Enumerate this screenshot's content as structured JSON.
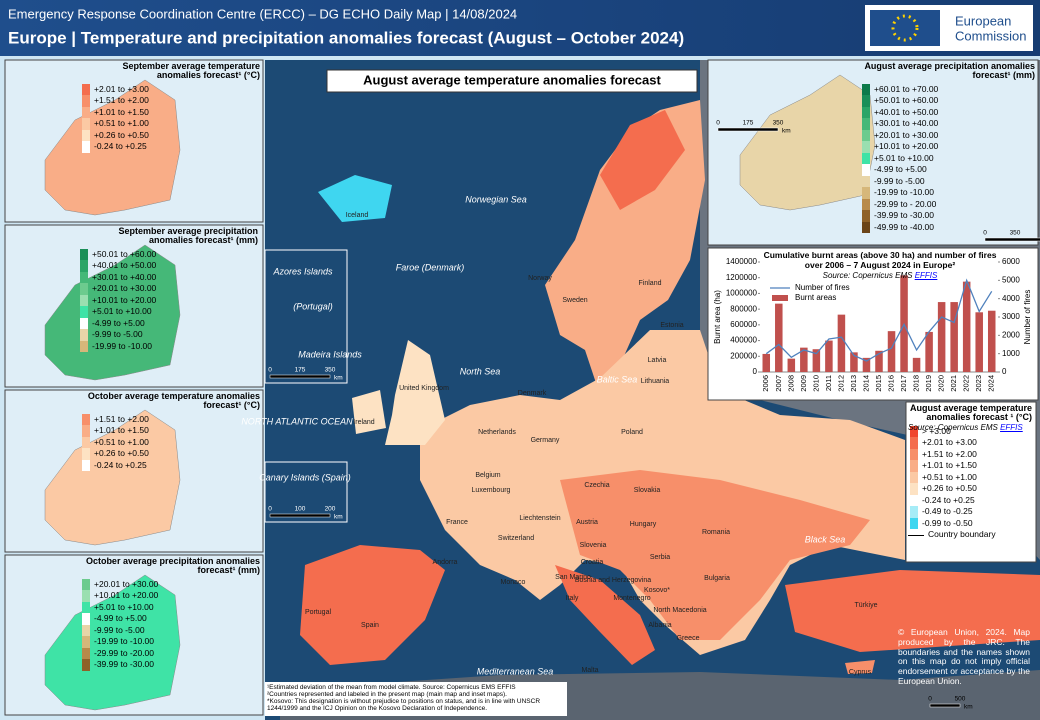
{
  "header": {
    "subtitle": "Emergency Response Coordination Centre (ERCC) – DG ECHO Daily Map | 14/08/2024",
    "title": "Europe | Temperature and precipitation anomalies forecast (August – October 2024)",
    "logo": [
      "European",
      "Commission"
    ]
  },
  "main_map": {
    "title": "August average temperature anomalies forecast",
    "labels": [
      "Norwegian Sea",
      "Iceland",
      "Faroe (Denmark)",
      "Azores Islands",
      "(Portugal)",
      "Madeira Islands",
      "NORTH ATLANTIC OCEAN",
      "Canary Islands (Spain)",
      "North Sea",
      "Baltic Sea",
      "Black Sea",
      "Mediterranean Sea",
      "Norway",
      "Sweden",
      "Finland",
      "Estonia",
      "Latvia",
      "Lithuania",
      "Denmark",
      "United Kingdom",
      "Ireland",
      "Netherlands",
      "Belgium",
      "Luxembourg",
      "Germany",
      "Poland",
      "Czechia",
      "Slovakia",
      "Austria",
      "Hungary",
      "Liechtenstein",
      "Switzerland",
      "France",
      "Slovenia",
      "Croatia",
      "Romania",
      "Serbia",
      "Bosnia and Herzegovina",
      "Montenegro",
      "Kosovo*",
      "Bulgaria",
      "North Macedonia",
      "Albania",
      "Italy",
      "San Marino",
      "Monaco",
      "Andorra",
      "Spain",
      "Portugal",
      "Greece",
      "Malta",
      "Türkiye",
      "Cyprus"
    ]
  },
  "insets": [
    {
      "title": "September average temperature anomalies forecast¹ (°C)",
      "items": [
        {
          "label": "+2.01 to +3.00",
          "color": "#f46d4e"
        },
        {
          "label": "+1.51 to +2.00",
          "color": "#f78f6a"
        },
        {
          "label": "+1.01 to +1.50",
          "color": "#f9ad87"
        },
        {
          "label": "+0.51 to +1.00",
          "color": "#fbc9a4"
        },
        {
          "label": "+0.26 to +0.50",
          "color": "#fde2c3"
        },
        {
          "label": "-0.24 to +0.25",
          "color": "#ffffff"
        }
      ]
    },
    {
      "title": "September average precipitation anomalies forecast¹ (mm)",
      "items": [
        {
          "label": "+50.01 to +60.00",
          "color": "#1a8f58"
        },
        {
          "label": "+40.01 to +50.00",
          "color": "#2ba567"
        },
        {
          "label": "+30.01 to +40.00",
          "color": "#45b878"
        },
        {
          "label": "+20.01 to +30.00",
          "color": "#6ccb8e"
        },
        {
          "label": "+10.01 to +20.00",
          "color": "#9adfb0"
        },
        {
          "label": "+5.01 to +10.00",
          "color": "#3fe3a6"
        },
        {
          "label": "-4.99 to +5.00",
          "color": "#ffffff"
        },
        {
          "label": "-9.99 to -5.00",
          "color": "#e8d5a8"
        },
        {
          "label": "-19.99 to -10.00",
          "color": "#d6b77a"
        }
      ]
    },
    {
      "title": "October average temperature anomalies forecast¹ (°C)",
      "items": [
        {
          "label": "+1.51 to +2.00",
          "color": "#f78f6a"
        },
        {
          "label": "+1.01 to +1.50",
          "color": "#f9ad87"
        },
        {
          "label": "+0.51 to +1.00",
          "color": "#fbc9a4"
        },
        {
          "label": "+0.26 to +0.50",
          "color": "#fde2c3"
        },
        {
          "label": "-0.24 to +0.25",
          "color": "#ffffff"
        }
      ]
    },
    {
      "title": "October average precipitation anomalies forecast¹ (mm)",
      "items": [
        {
          "label": "+20.01 to +30.00",
          "color": "#6ccb8e"
        },
        {
          "label": "+10.01 to +20.00",
          "color": "#9adfb0"
        },
        {
          "label": "+5.01 to +10.00",
          "color": "#3fe3a6"
        },
        {
          "label": "-4.99 to +5.00",
          "color": "#ffffff"
        },
        {
          "label": "-9.99 to -5.00",
          "color": "#e8d5a8"
        },
        {
          "label": "-19.99 to -10.00",
          "color": "#d6b77a"
        },
        {
          "label": "-29.99 to -20.00",
          "color": "#b88a4a"
        },
        {
          "label": "-39.99 to -30.00",
          "color": "#8f6128"
        }
      ]
    }
  ],
  "precip_inset": {
    "title": "August average precipitation anomalies forecast¹ (mm)",
    "items": [
      {
        "label": "+60.01 to +70.00",
        "color": "#0d7a4a"
      },
      {
        "label": "+50.01 to +60.00",
        "color": "#1a8f58"
      },
      {
        "label": "+40.01 to +50.00",
        "color": "#2ba567"
      },
      {
        "label": "+30.01 to +40.00",
        "color": "#45b878"
      },
      {
        "label": "+20.01 to +30.00",
        "color": "#6ccb8e"
      },
      {
        "label": "+10.01 to +20.00",
        "color": "#9adfb0"
      },
      {
        "label": "+5.01 to +10.00",
        "color": "#3fe3a6"
      },
      {
        "label": "-4.99 to +5.00",
        "color": "#ffffff"
      },
      {
        "label": "-9.99 to -5.00",
        "color": "#e8d5a8"
      },
      {
        "label": "-19.99 to -10.00",
        "color": "#d6b77a"
      },
      {
        "label": "-29.99 to - 20.00",
        "color": "#b88a4a"
      },
      {
        "label": "-39.99 to -30.00",
        "color": "#8f6128"
      },
      {
        "label": "-49.99 to -40.00",
        "color": "#6b4418"
      }
    ]
  },
  "main_legend": {
    "title": "August average temperature anomalies forecast ¹ (°C)",
    "source": "Source: Copernicus EMS",
    "source_link": "EFFIS",
    "items": [
      {
        "label": "> +3.00",
        "color": "#f0462f"
      },
      {
        "label": "+2.01 to +3.00",
        "color": "#f46d4e"
      },
      {
        "label": "+1.51 to +2.00",
        "color": "#f78f6a"
      },
      {
        "label": "+1.01 to +1.50",
        "color": "#f9ad87"
      },
      {
        "label": "+0.51 to +1.00",
        "color": "#fbc9a4"
      },
      {
        "label": "+0.26 to +0.50",
        "color": "#fde2c3"
      },
      {
        "label": "-0.24 to +0.25",
        "color": "#ffffff"
      },
      {
        "label": "-0.49 to -0.25",
        "color": "#a6ecf7"
      },
      {
        "label": "-0.99 to -0.50",
        "color": "#3fd6f0"
      }
    ],
    "boundary": "Country boundary"
  },
  "chart_data": {
    "type": "bar",
    "title": "Cumulative burnt areas (above 30 ha) and number of fires over 2006 –  7 August 2024 in Europe²",
    "source": "Source: Copernicus EMS",
    "source_link": "EFFIS",
    "ylabel": "Burnt area (ha)",
    "y2label": "Number of fires",
    "categories": [
      "2006",
      "2007",
      "2008",
      "2009",
      "2010",
      "2011",
      "2012",
      "2013",
      "2014",
      "2015",
      "2016",
      "2017",
      "2018",
      "2019",
      "2020",
      "2021",
      "2022",
      "2023",
      "2024"
    ],
    "series": [
      {
        "name": "Number of fires",
        "type": "line",
        "axis": "y2",
        "color": "#4f81bd",
        "values": [
          1000,
          1500,
          800,
          1200,
          1000,
          1800,
          1900,
          900,
          600,
          1000,
          1300,
          2600,
          1200,
          2200,
          3000,
          2700,
          5000,
          3300,
          4400
        ]
      },
      {
        "name": "Burnt areas",
        "type": "bar",
        "color": "#c0504d",
        "values": [
          230000,
          870000,
          170000,
          310000,
          290000,
          400000,
          730000,
          250000,
          180000,
          270000,
          520000,
          1230000,
          180000,
          510000,
          890000,
          890000,
          1150000,
          760000,
          780000
        ]
      }
    ],
    "ylim": [
      0,
      1400000
    ],
    "yticks": [
      0,
      200000,
      400000,
      600000,
      800000,
      1000000,
      1200000,
      1400000
    ],
    "y2lim": [
      0,
      6000
    ],
    "y2ticks": [
      0,
      1000,
      2000,
      3000,
      4000,
      5000,
      6000
    ]
  },
  "scale_bars": [
    {
      "ticks": [
        "0",
        "500"
      ],
      "unit": "km"
    },
    {
      "ticks": [
        "0",
        "175",
        "350"
      ],
      "unit": "km"
    },
    {
      "ticks": [
        "0",
        "100",
        "200"
      ],
      "unit": "km"
    },
    {
      "ticks": [
        "0",
        "175",
        "350"
      ],
      "unit": "km"
    },
    {
      "ticks": [
        "0",
        "350",
        "700"
      ],
      "unit": "km"
    }
  ],
  "footnotes": [
    "¹Estimated deviation of the mean from model climate. Source: Copernicus EMS EFFIS",
    "²Countries represented and labeled in the present map (main map and inset maps).",
    "*Kosovo: This designation is without prejudice to positions on status, and is in line with UNSCR 1244/1999 and the ICJ Opinion on the Kosovo Declaration of Independence."
  ],
  "copyright": "© European Union, 2024. Map produced by the JRC. The boundaries and the names shown on this map do not imply official endorsement or acceptance by the European Union."
}
